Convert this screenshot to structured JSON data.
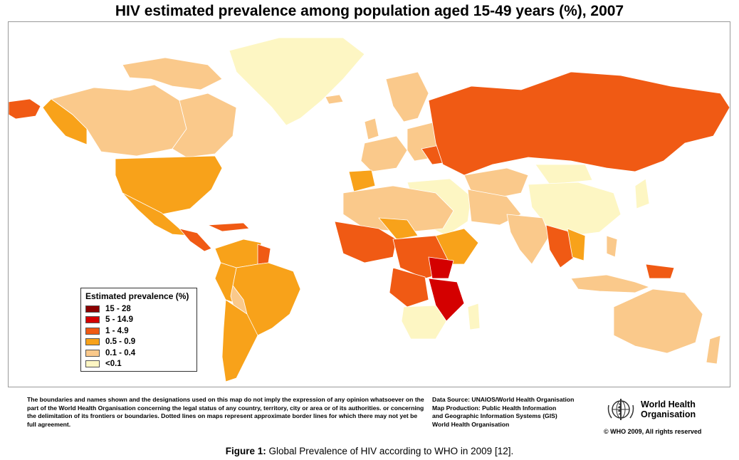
{
  "title": "HIV estimated prevalence among population aged 15-49 years (%), 2007",
  "legend": {
    "title": "Estimated prevalence (%)",
    "items": [
      {
        "label": "15 - 28",
        "color": "#8b0000"
      },
      {
        "label": "5 - 14.9",
        "color": "#d40000"
      },
      {
        "label": "1 - 4.9",
        "color": "#f05a14"
      },
      {
        "label": "0.5 - 0.9",
        "color": "#f8a21a"
      },
      {
        "label": "0.1 - 0.4",
        "color": "#fac98b"
      },
      {
        "label": "<0.1",
        "color": "#fdf6c3"
      }
    ]
  },
  "disclaimer": "The boundaries and names shown and the designations used on this map do not imply the expression of any opinion whatsoever on the part of the World Health Organisation concerning the legal status of any country, territory, city or area or of its authorities. or concerning the delimitation of its frontiers or boundaries. Dotted lines on maps represent approximate border lines for which there may not yet be full agreement.",
  "source": {
    "line1": "Data Source: UNAIOS/World Health Organisation",
    "line2": "Map Production: Public Health Information",
    "line3": "and Geographic Information Systems  (GIS)",
    "line4": "World Health Organisation"
  },
  "organisation": {
    "line1": "World Health",
    "line2": "Organisation",
    "logo_icon": "who-emblem-icon"
  },
  "copyright": "© WHO 2009, All rights reserved",
  "caption": {
    "label": "Figure 1:",
    "text": " Global Prevalence of HIV according to WHO in 2009 [12]."
  },
  "colors": {
    "border": "#9a9a9a",
    "country_stroke": "#ffffff",
    "no_data": "#c9c9c9"
  }
}
